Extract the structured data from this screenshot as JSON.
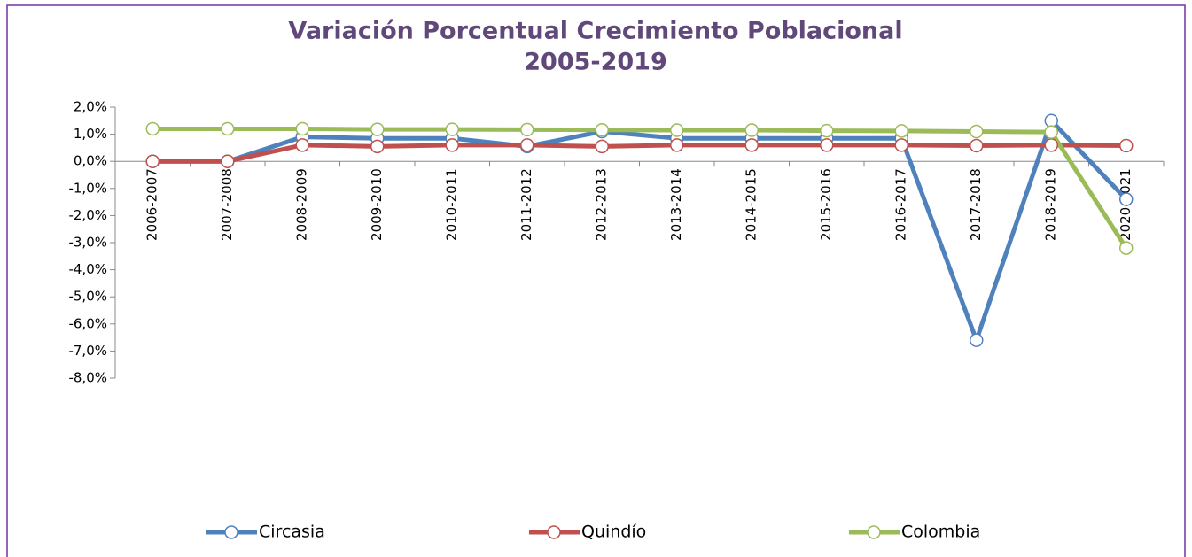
{
  "chart_data": {
    "type": "line",
    "title": [
      "Variación Porcentual Crecimiento Poblacional",
      "2005-2019"
    ],
    "categories": [
      "2006-2007",
      "2007-2008",
      "2008-2009",
      "2009-2010",
      "2010-2011",
      "2011-2012",
      "2012-2013",
      "2013-2014",
      "2014-2015",
      "2015-2016",
      "2016-2017",
      "2017-2018",
      "2018-2019",
      "2020-2021"
    ],
    "series": [
      {
        "name": "Circasia",
        "color": "#4f81bd",
        "values": [
          0,
          0,
          0.9,
          0.85,
          0.85,
          0.55,
          1.1,
          0.85,
          0.85,
          0.85,
          0.85,
          -6.6,
          1.5,
          -1.4
        ]
      },
      {
        "name": "Quindío",
        "color": "#c0504d",
        "values": [
          0,
          0,
          0.6,
          0.55,
          0.6,
          0.6,
          0.55,
          0.6,
          0.6,
          0.6,
          0.6,
          0.58,
          0.6,
          0.58
        ]
      },
      {
        "name": "Colombia",
        "color": "#9bbb59",
        "values": [
          1.2,
          1.2,
          1.2,
          1.18,
          1.18,
          1.17,
          1.16,
          1.15,
          1.15,
          1.13,
          1.12,
          1.1,
          1.08,
          -3.2
        ]
      }
    ],
    "ylim": [
      -8,
      2
    ],
    "yticks": [
      {
        "value": 2,
        "label": "2,0%"
      },
      {
        "value": 1,
        "label": "1,0%"
      },
      {
        "value": 0,
        "label": "0,0%"
      },
      {
        "value": -1,
        "label": "-1,0%"
      },
      {
        "value": -2,
        "label": "-2,0%"
      },
      {
        "value": -3,
        "label": "-3,0%"
      },
      {
        "value": -4,
        "label": "-4,0%"
      },
      {
        "value": -5,
        "label": "-5,0%"
      },
      {
        "value": -6,
        "label": "-6,0%"
      },
      {
        "value": -7,
        "label": "-7,0%"
      },
      {
        "value": -8,
        "label": "-8,0%"
      }
    ],
    "legend": "bottom"
  }
}
